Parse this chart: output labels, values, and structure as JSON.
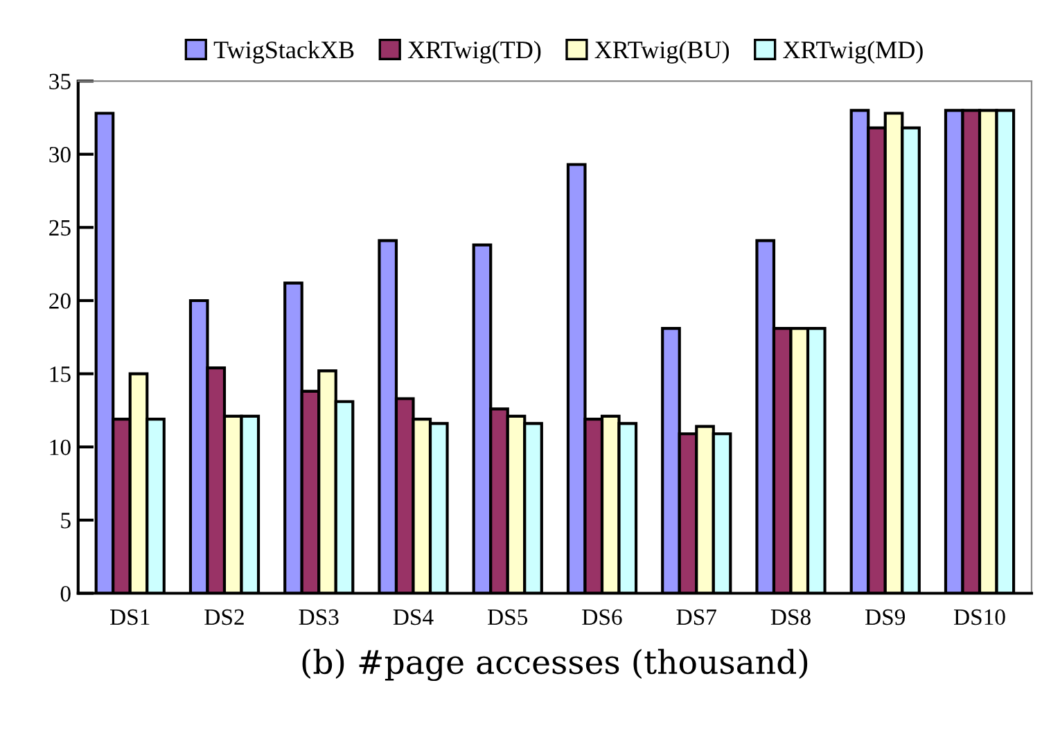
{
  "chart_data": {
    "type": "bar",
    "xlabel": "(b) #page accesses (thousand)",
    "categories": [
      "DS1",
      "DS2",
      "DS3",
      "DS4",
      "DS5",
      "DS6",
      "DS7",
      "DS8",
      "DS9",
      "DS10"
    ],
    "series": [
      {
        "name": "TwigStackXB",
        "color": "#9999ff",
        "values": [
          32.8,
          20.0,
          21.2,
          24.1,
          23.8,
          29.3,
          18.1,
          24.1,
          33.0,
          33.0
        ]
      },
      {
        "name": "XRTwig(TD)",
        "color": "#993366",
        "values": [
          11.9,
          15.4,
          13.8,
          13.3,
          12.6,
          11.9,
          10.9,
          18.1,
          31.8,
          33.0
        ]
      },
      {
        "name": "XRTwig(BU)",
        "color": "#ffffcc",
        "values": [
          15.0,
          12.1,
          15.2,
          11.9,
          12.1,
          12.1,
          11.4,
          18.1,
          32.8,
          33.0
        ]
      },
      {
        "name": "XRTwig(MD)",
        "color": "#ccffff",
        "values": [
          11.9,
          12.1,
          13.1,
          11.6,
          11.6,
          11.6,
          10.9,
          18.1,
          31.8,
          33.0
        ]
      }
    ],
    "ylim": [
      0,
      35
    ],
    "yticks": [
      0,
      5,
      10,
      15,
      20,
      25,
      30,
      35
    ],
    "grid": false,
    "legend": "top"
  }
}
